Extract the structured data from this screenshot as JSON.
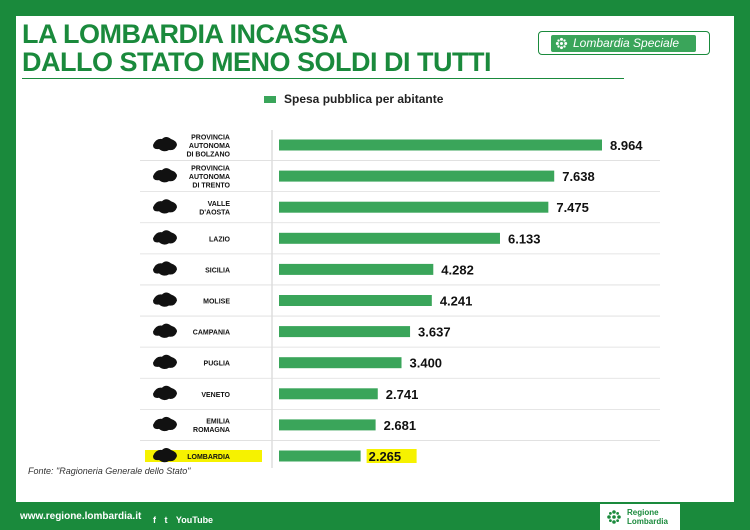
{
  "header": {
    "title_line1": "LA LOMBARDIA INCASSA",
    "title_line2": "DALLO STATO MENO SOLDI DI TUTTI",
    "badge_label": "Lombardia Speciale",
    "badge_icon": "lombardia-rose-icon"
  },
  "colors": {
    "brand_green": "#1a8a3c",
    "bar_green": "#3aa55a",
    "highlight_yellow": "#f6f200"
  },
  "chart_data": {
    "type": "bar",
    "orientation": "horizontal",
    "legend": "Spesa pubblica per abitante",
    "legend_position": "top",
    "categories": [
      "PROVINCIA AUTONOMA DI BOLZANO",
      "PROVINCIA AUTONOMA DI TRENTO",
      "VALLE D'AOSTA",
      "LAZIO",
      "SICILIA",
      "MOLISE",
      "CAMPANIA",
      "PUGLIA",
      "VENETO",
      "EMILIA ROMAGNA",
      "LOMBARDIA"
    ],
    "category_lines": [
      [
        "PROVINCIA",
        "AUTONOMA",
        "DI BOLZANO"
      ],
      [
        "PROVINCIA",
        "AUTONOMA",
        "DI TRENTO"
      ],
      [
        "VALLE",
        "D'AOSTA"
      ],
      [
        "LAZIO"
      ],
      [
        "SICILIA"
      ],
      [
        "MOLISE"
      ],
      [
        "CAMPANIA"
      ],
      [
        "PUGLIA"
      ],
      [
        "VENETO"
      ],
      [
        "EMILIA",
        "ROMAGNA"
      ],
      [
        "LOMBARDIA"
      ]
    ],
    "values": [
      8964,
      7638,
      7475,
      6133,
      4282,
      4241,
      3637,
      3400,
      2741,
      2681,
      2265
    ],
    "value_labels": [
      "8.964",
      "7.638",
      "7.475",
      "6.133",
      "4.282",
      "4.241",
      "3.637",
      "3.400",
      "2.741",
      "2.681",
      "2.265"
    ],
    "highlighted_category": "LOMBARDIA",
    "xlim": [
      0,
      10000
    ],
    "grid": false
  },
  "footer": {
    "source": "Fonte: \"Ragioneria Generale dello Stato\"",
    "url": "www.regione.lombardia.it",
    "social": [
      "f",
      "t",
      "YouTube"
    ],
    "logo_text_line1": "Regione",
    "logo_text_line2": "Lombardia"
  }
}
